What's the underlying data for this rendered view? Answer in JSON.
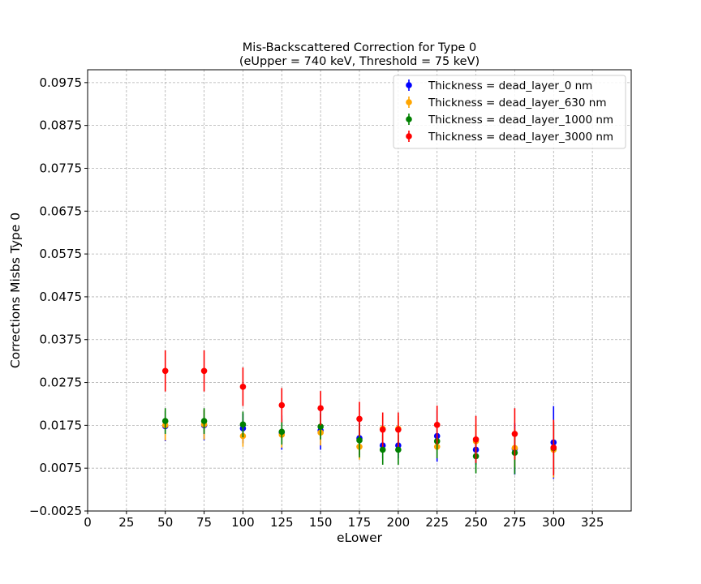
{
  "chart_data": {
    "type": "scatter",
    "title_line1": "Mis-Backscattered Correction for Type 0",
    "title_line2": "(eUpper = 740 keV, Threshold = 75 keV)",
    "xlabel": "eLower",
    "ylabel": "Corrections Misbs Type 0",
    "xlim": [
      0,
      350
    ],
    "ylim": [
      -0.0025,
      0.1005
    ],
    "xticks": [
      0,
      25,
      50,
      75,
      100,
      125,
      150,
      175,
      200,
      225,
      250,
      275,
      300,
      325
    ],
    "yticks": [
      -0.0025,
      0.0075,
      0.0175,
      0.0275,
      0.0375,
      0.0475,
      0.0575,
      0.0675,
      0.0775,
      0.0875,
      0.0975
    ],
    "ytick_labels": [
      "−0.0025",
      "0.0075",
      "0.0175",
      "0.0275",
      "0.0375",
      "0.0475",
      "0.0575",
      "0.0675",
      "0.0775",
      "0.0875",
      "0.0975"
    ],
    "grid": true,
    "legend_position": "top-right",
    "x": [
      50,
      75,
      100,
      125,
      150,
      175,
      190,
      200,
      225,
      250,
      275,
      300
    ],
    "series": [
      {
        "name": "Thickness = dead_layer_0 nm",
        "color": "#0000ff",
        "y": [
          0.0173,
          0.0175,
          0.0168,
          0.0158,
          0.0163,
          0.0145,
          0.0128,
          0.0128,
          0.015,
          0.0118,
          0.012,
          0.0135
        ],
        "err": [
          0.0035,
          0.0035,
          0.0035,
          0.004,
          0.0045,
          0.004,
          0.003,
          0.003,
          0.006,
          0.0035,
          0.006,
          0.0085
        ]
      },
      {
        "name": "Thickness = dead_layer_630 nm",
        "color": "#ffa500",
        "y": [
          0.0175,
          0.0177,
          0.015,
          0.0153,
          0.0158,
          0.0125,
          0.0167,
          0.0167,
          0.0125,
          0.0138,
          0.0122,
          0.0118
        ],
        "err": [
          0.0035,
          0.0035,
          0.0025,
          0.003,
          0.003,
          0.003,
          0.003,
          0.003,
          0.0025,
          0.004,
          0.0045,
          0.0065
        ]
      },
      {
        "name": "Thickness = dead_layer_1000 nm",
        "color": "#008000",
        "y": [
          0.0185,
          0.0185,
          0.0177,
          0.016,
          0.0172,
          0.014,
          0.0118,
          0.0118,
          0.0138,
          0.0103,
          0.0111,
          0.0122
        ],
        "err": [
          0.003,
          0.003,
          0.003,
          0.003,
          0.003,
          0.004,
          0.0035,
          0.0035,
          0.004,
          0.004,
          0.005,
          0.006
        ]
      },
      {
        "name": "Thickness = dead_layer_3000 nm",
        "color": "#ff0000",
        "y": [
          0.0302,
          0.0302,
          0.0265,
          0.0222,
          0.0215,
          0.019,
          0.0165,
          0.0165,
          0.0176,
          0.0142,
          0.0155,
          0.0123
        ],
        "err": [
          0.0048,
          0.0048,
          0.0045,
          0.004,
          0.004,
          0.004,
          0.004,
          0.004,
          0.0045,
          0.0055,
          0.006,
          0.0065
        ]
      }
    ]
  }
}
